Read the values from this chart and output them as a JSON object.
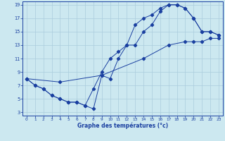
{
  "bg_color": "#cce8f0",
  "grid_color": "#aaccdd",
  "line_color": "#1a3fa0",
  "xlabel": "Graphe des températures (°c)",
  "xlim": [
    -0.5,
    23.5
  ],
  "ylim": [
    2.5,
    19.5
  ],
  "yticks": [
    3,
    5,
    7,
    9,
    11,
    13,
    15,
    17,
    19
  ],
  "xticks": [
    0,
    1,
    2,
    3,
    4,
    5,
    6,
    7,
    8,
    9,
    10,
    11,
    12,
    13,
    14,
    15,
    16,
    17,
    18,
    19,
    20,
    21,
    22,
    23
  ],
  "line1_x": [
    0,
    1,
    2,
    3,
    4,
    5,
    6,
    7,
    8,
    9,
    10,
    11,
    12,
    13,
    14,
    15,
    16,
    17,
    18,
    19,
    20,
    21,
    22,
    23
  ],
  "line1_y": [
    8,
    7,
    6.5,
    5.5,
    5,
    4.5,
    4.5,
    4,
    6.5,
    9,
    11,
    12,
    13,
    16,
    17,
    17.5,
    18.5,
    19,
    19,
    18.5,
    17,
    15,
    15,
    14.5
  ],
  "line2_x": [
    0,
    1,
    2,
    3,
    4,
    5,
    6,
    7,
    8,
    9,
    10,
    11,
    12,
    13,
    14,
    15,
    16,
    17,
    18,
    19,
    20,
    21,
    22,
    23
  ],
  "line2_y": [
    8,
    7,
    6.5,
    5.5,
    5,
    4.5,
    4.5,
    4,
    3.5,
    8.5,
    8,
    11,
    13,
    13,
    15,
    16,
    18,
    19,
    19,
    18.5,
    17,
    15,
    15,
    14.5
  ],
  "line3_x": [
    0,
    4,
    9,
    14,
    17,
    19,
    20,
    21,
    22,
    23
  ],
  "line3_y": [
    8,
    7.5,
    8.5,
    11,
    13,
    13.5,
    13.5,
    13.5,
    14,
    14
  ]
}
